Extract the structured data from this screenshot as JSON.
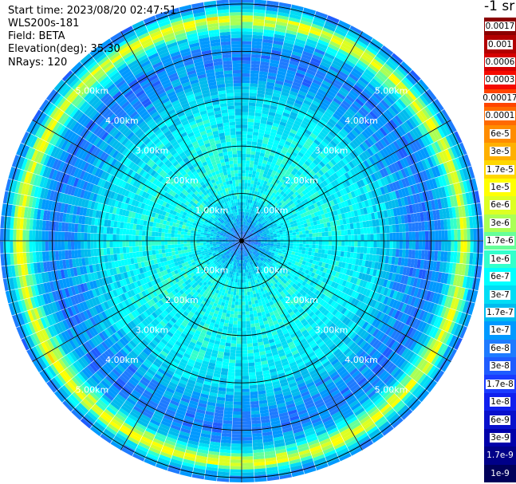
{
  "header": {
    "start_time": "Start time: 2023/08/20 02:47:51",
    "instrument": "WLS200s-181",
    "field": "Field: BETA",
    "elevation": "Elevation(deg): 35.30",
    "nrays": "NRays: 120"
  },
  "colorbar": {
    "title": "-1 sr",
    "entries": [
      {
        "label": "0.0017",
        "color": "#8b0000"
      },
      {
        "label": "0.001",
        "color": "#b20000"
      },
      {
        "label": "0.0006",
        "color": "#d60000"
      },
      {
        "label": "0.0003",
        "color": "#f50a00"
      },
      {
        "label": "0.00017",
        "color": "#ff4500"
      },
      {
        "label": "0.0001",
        "color": "#ff6a00"
      },
      {
        "label": "6e-5",
        "color": "#ff8c00"
      },
      {
        "label": "3e-5",
        "color": "#ffb000"
      },
      {
        "label": "1.7e-5",
        "color": "#ffd700"
      },
      {
        "label": "1e-5",
        "color": "#ffff00"
      },
      {
        "label": "6e-6",
        "color": "#ddff22"
      },
      {
        "label": "3e-6",
        "color": "#aaff55"
      },
      {
        "label": "1.7e-6",
        "color": "#66ff99"
      },
      {
        "label": "1e-6",
        "color": "#33ffcc"
      },
      {
        "label": "6e-7",
        "color": "#00ffff"
      },
      {
        "label": "3e-7",
        "color": "#00ddf5"
      },
      {
        "label": "1.7e-7",
        "color": "#00bbee"
      },
      {
        "label": "1e-7",
        "color": "#0099ff"
      },
      {
        "label": "6e-8",
        "color": "#1e7bff"
      },
      {
        "label": "3e-8",
        "color": "#1f5cff"
      },
      {
        "label": "1.7e-8",
        "color": "#1a3cff"
      },
      {
        "label": "1e-8",
        "color": "#1020ee"
      },
      {
        "label": "6e-9",
        "color": "#0810cc"
      },
      {
        "label": "3e-9",
        "color": "#0000aa"
      },
      {
        "label": "1.7e-9",
        "color": "#000088"
      },
      {
        "label": "1e-9",
        "color": "#00005a"
      }
    ]
  },
  "chart_data": {
    "type": "heatmap",
    "projection": "polar PPI (plan position indicator)",
    "nrays": 120,
    "range_max_km": 5.1,
    "range_rings_km": [
      1,
      2,
      3,
      4,
      5
    ],
    "ring_labels": [
      "1.00km",
      "2.00km",
      "3.00km",
      "4.00km",
      "5.00km"
    ],
    "radial_profile": [
      {
        "range_km": 0.0,
        "level": "3e-8"
      },
      {
        "range_km": 0.5,
        "level": "1.7e-7"
      },
      {
        "range_km": 1.0,
        "level": "6e-7"
      },
      {
        "range_km": 2.0,
        "level": "6e-7"
      },
      {
        "range_km": 3.0,
        "level": "3e-7"
      },
      {
        "range_km": 3.5,
        "level": "1e-7"
      },
      {
        "range_km": 4.0,
        "level": "6e-8"
      },
      {
        "range_km": 4.35,
        "level": "1.7e-7"
      },
      {
        "range_km": 4.55,
        "level": "1.7e-6"
      },
      {
        "range_km": 4.7,
        "level": "1e-5"
      },
      {
        "range_km": 4.85,
        "level": "6e-7"
      },
      {
        "range_km": 5.0,
        "level": "1e-7"
      },
      {
        "range_km": 5.1,
        "level": "6e-8"
      }
    ]
  }
}
